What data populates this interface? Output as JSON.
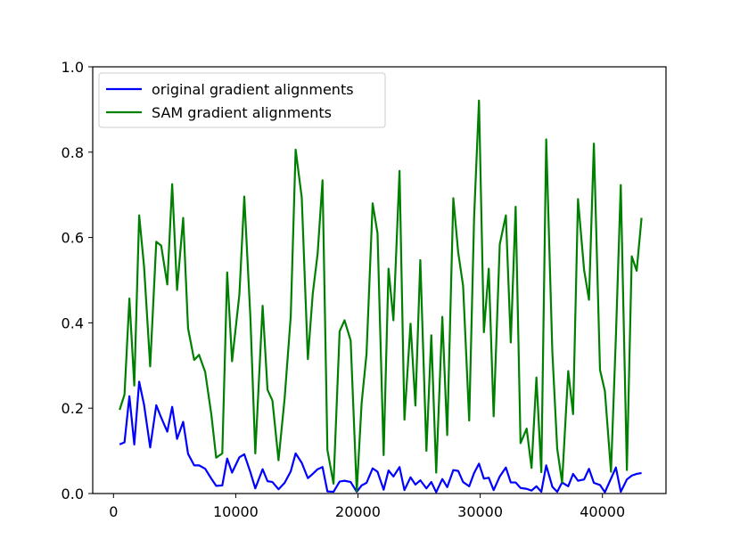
{
  "chart_data": {
    "type": "line",
    "title": "",
    "xlabel": "",
    "ylabel": "",
    "xlim": [
      -1700,
      45200
    ],
    "ylim": [
      0.0,
      1.0
    ],
    "grid": false,
    "legend_position": "upper-left",
    "x_ticks": [
      0,
      10000,
      20000,
      30000,
      40000
    ],
    "x_tick_labels": [
      "0",
      "10000",
      "20000",
      "30000",
      "40000"
    ],
    "y_ticks": [
      0.0,
      0.2,
      0.4,
      0.6,
      0.8,
      1.0
    ],
    "y_tick_labels": [
      "0.0",
      "0.2",
      "0.4",
      "0.6",
      "0.8",
      "1.0"
    ],
    "x": [
      500,
      900,
      1300,
      1700,
      2100,
      2500,
      3000,
      3500,
      3900,
      4400,
      4800,
      5200,
      5700,
      6100,
      6600,
      7000,
      7500,
      8000,
      8400,
      8900,
      9300,
      9700,
      10300,
      10700,
      11200,
      11600,
      12200,
      12600,
      13000,
      13500,
      14000,
      14500,
      14900,
      15400,
      15900,
      16300,
      16700,
      17100,
      17500,
      18000,
      18500,
      18900,
      19400,
      19900,
      20300,
      20700,
      21200,
      21600,
      22100,
      22500,
      22900,
      23400,
      23800,
      24300,
      24700,
      25100,
      25600,
      26000,
      26400,
      26900,
      27300,
      27800,
      28200,
      28600,
      29100,
      29500,
      29900,
      30300,
      30700,
      31100,
      31600,
      32100,
      32500,
      32900,
      33300,
      33800,
      34200,
      34600,
      35000,
      35400,
      35900,
      36300,
      36700,
      37200,
      37600,
      38000,
      38500,
      38900,
      39300,
      39800,
      40200,
      40700,
      41100,
      41500,
      42000,
      42400,
      42800,
      43200
    ],
    "series": [
      {
        "name": "original gradient alignments",
        "color": "#0000ff",
        "values": [
          0.115,
          0.12,
          0.228,
          0.115,
          0.262,
          0.208,
          0.108,
          0.207,
          0.178,
          0.145,
          0.203,
          0.128,
          0.168,
          0.093,
          0.066,
          0.066,
          0.058,
          0.035,
          0.018,
          0.019,
          0.082,
          0.049,
          0.085,
          0.092,
          0.05,
          0.012,
          0.057,
          0.029,
          0.027,
          0.01,
          0.025,
          0.052,
          0.094,
          0.072,
          0.036,
          0.046,
          0.057,
          0.062,
          0.005,
          0.004,
          0.028,
          0.03,
          0.027,
          0.004,
          0.019,
          0.025,
          0.059,
          0.051,
          0.009,
          0.054,
          0.04,
          0.062,
          0.008,
          0.038,
          0.021,
          0.031,
          0.012,
          0.027,
          0.003,
          0.034,
          0.015,
          0.055,
          0.053,
          0.027,
          0.017,
          0.048,
          0.07,
          0.035,
          0.037,
          0.008,
          0.04,
          0.061,
          0.026,
          0.026,
          0.013,
          0.011,
          0.007,
          0.017,
          0.004,
          0.066,
          0.016,
          0.004,
          0.026,
          0.017,
          0.046,
          0.03,
          0.033,
          0.058,
          0.025,
          0.02,
          0.003,
          0.035,
          0.061,
          0.004,
          0.033,
          0.042,
          0.046,
          0.048
        ]
      },
      {
        "name": "SAM gradient alignments",
        "color": "#008000",
        "values": [
          0.196,
          0.232,
          0.457,
          0.253,
          0.652,
          0.532,
          0.298,
          0.59,
          0.581,
          0.49,
          0.725,
          0.477,
          0.646,
          0.387,
          0.313,
          0.325,
          0.285,
          0.186,
          0.084,
          0.094,
          0.518,
          0.31,
          0.467,
          0.696,
          0.412,
          0.094,
          0.44,
          0.243,
          0.218,
          0.078,
          0.223,
          0.415,
          0.806,
          0.694,
          0.315,
          0.468,
          0.562,
          0.734,
          0.102,
          0.023,
          0.38,
          0.406,
          0.359,
          0.005,
          0.212,
          0.327,
          0.68,
          0.61,
          0.09,
          0.527,
          0.406,
          0.756,
          0.173,
          0.398,
          0.206,
          0.547,
          0.1,
          0.371,
          0.049,
          0.414,
          0.137,
          0.692,
          0.565,
          0.487,
          0.171,
          0.646,
          0.921,
          0.378,
          0.527,
          0.181,
          0.584,
          0.652,
          0.354,
          0.672,
          0.118,
          0.152,
          0.06,
          0.272,
          0.05,
          0.83,
          0.333,
          0.105,
          0.026,
          0.287,
          0.186,
          0.69,
          0.524,
          0.454,
          0.82,
          0.29,
          0.24,
          0.051,
          0.367,
          0.723,
          0.055,
          0.556,
          0.522,
          0.646
        ]
      }
    ]
  }
}
